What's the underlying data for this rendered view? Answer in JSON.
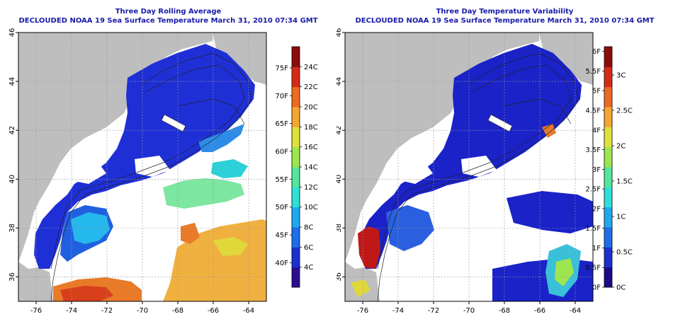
{
  "chart_data": [
    {
      "type": "heatmap",
      "title": "Three Day Rolling Average",
      "subtitle": "DECLOUDED NOAA 19 Sea Surface Temperature March 31, 2010 07:34 GMT",
      "xlim": [
        -77,
        -63
      ],
      "ylim": [
        35,
        46
      ],
      "x_ticks": [
        "-76",
        "-74",
        "-72",
        "-70",
        "-68",
        "-66",
        "-64"
      ],
      "y_ticks": [
        "36",
        "38",
        "40",
        "42",
        "44",
        "46"
      ],
      "grid": true,
      "colorbar": {
        "range_c": [
          2,
          26
        ],
        "colors": [
          "#2b0f8f",
          "#1c2fd0",
          "#1e6ee8",
          "#1fa8f0",
          "#2ee0d8",
          "#55e69a",
          "#9ee64f",
          "#e0e03a",
          "#f5a630",
          "#ee6a22",
          "#d62a18",
          "#8a0d0d"
        ],
        "labels_f": [
          "40F",
          "45F",
          "50F",
          "55F",
          "60F",
          "65F",
          "70F",
          "75F"
        ],
        "labels_c": [
          "4C",
          "6C",
          "8C",
          "10C",
          "12C",
          "14C",
          "16C",
          "18C",
          "20C",
          "22C",
          "24C"
        ]
      }
    },
    {
      "type": "heatmap",
      "title": "Three Day Temperature Variability",
      "subtitle": "DECLOUDED NOAA 19 Sea Surface Temperature March 31, 2010 07:34 GMT",
      "xlim": [
        -77,
        -63
      ],
      "ylim": [
        35,
        46
      ],
      "x_ticks": [
        "-76",
        "-74",
        "-72",
        "-70",
        "-68",
        "-66",
        "-64"
      ],
      "y_ticks": [
        "36",
        "38",
        "40",
        "42",
        "44",
        "46"
      ],
      "grid": true,
      "colorbar": {
        "range_c": [
          0,
          3.4
        ],
        "colors": [
          "#1a0a8a",
          "#1c2fd0",
          "#1e6ee8",
          "#1fa8f0",
          "#2ee0d8",
          "#55e69a",
          "#9ee64f",
          "#e0e03a",
          "#f5a630",
          "#ee6a22",
          "#d62a18",
          "#8a0d0d"
        ],
        "labels_f": [
          "0F",
          "0.5F",
          "1F",
          "1.5F",
          "2F",
          "2.5F",
          "3F",
          "3.5F",
          "4F",
          "4.5F",
          "5F",
          "5.5F",
          "6F"
        ],
        "labels_c": [
          "0C",
          "0.5C",
          "1C",
          "1.5C",
          "2C",
          "2.5C",
          "3C"
        ]
      }
    }
  ]
}
